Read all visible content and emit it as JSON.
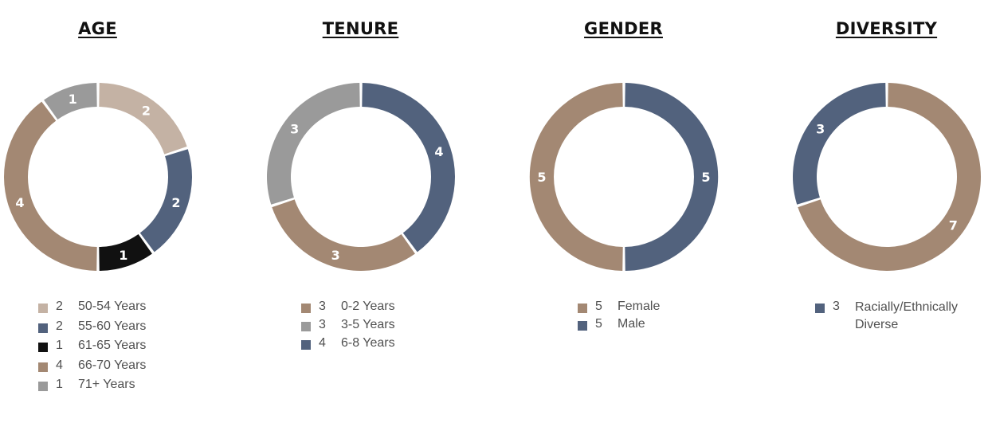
{
  "chart_data": [
    {
      "type": "pie",
      "title": "AGE",
      "slices": [
        {
          "value": 2,
          "label": "50-54 Years",
          "color": "#c4b2a4"
        },
        {
          "value": 2,
          "label": "55-60 Years",
          "color": "#52627d"
        },
        {
          "value": 1,
          "label": "61-65 Years",
          "color": "#111111"
        },
        {
          "value": 4,
          "label": "66-70 Years",
          "color": "#a38873"
        },
        {
          "value": 1,
          "label": "71+ Years",
          "color": "#9a9a9a"
        }
      ]
    },
    {
      "type": "pie",
      "title": "TENURE",
      "slices": [
        {
          "value": 4,
          "label": "6-8 Years",
          "color": "#52627d"
        },
        {
          "value": 3,
          "label": "0-2 Years",
          "color": "#a38873"
        },
        {
          "value": 3,
          "label": "3-5 Years",
          "color": "#9a9a9a"
        }
      ],
      "legend_order": [
        1,
        2,
        0
      ]
    },
    {
      "type": "pie",
      "title": "GENDER",
      "slices": [
        {
          "value": 5,
          "label": "Male",
          "color": "#52627d"
        },
        {
          "value": 5,
          "label": "Female",
          "color": "#a38873"
        }
      ],
      "legend_order": [
        1,
        0
      ]
    },
    {
      "type": "pie",
      "title": "DIVERSITY",
      "slices": [
        {
          "value": 7,
          "label": "",
          "color": "#a38873"
        },
        {
          "value": 3,
          "label": "Racially/Ethnically Diverse",
          "color": "#52627d"
        }
      ],
      "legend_order": [
        1
      ]
    }
  ]
}
